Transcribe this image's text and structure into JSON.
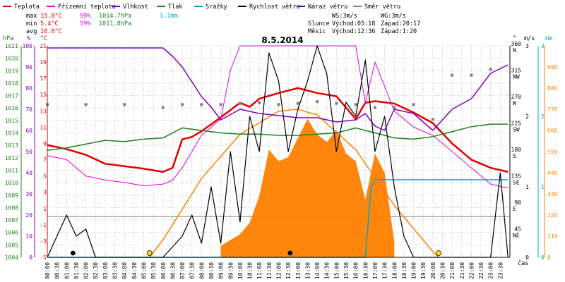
{
  "legend": [
    {
      "label": "Teplota",
      "color": "#e00000"
    },
    {
      "label": "Přízemní teplota",
      "color": "#e000e0"
    },
    {
      "label": "Vlhkost",
      "color": "#8000c0"
    },
    {
      "label": "Tlak",
      "color": "#208020"
    },
    {
      "label": "Srážky",
      "color": "#00a8d0"
    },
    {
      "label": "Rychlost větru",
      "color": "#000000"
    },
    {
      "label": "Náraz větru",
      "color": "#2020a0"
    },
    {
      "label": "Směr větru",
      "color": "#808080"
    }
  ],
  "stats": {
    "max": {
      "label": "max",
      "temp": "15.8°C",
      "hum": "99%",
      "press": "1014.7hPa",
      "rain": "1.1mm"
    },
    "min": {
      "label": "min",
      "temp": "5.4°C",
      "hum": "59%",
      "press": "1011.8hPa"
    },
    "avg": {
      "label": "avg",
      "temp": "10.8°C"
    }
  },
  "ws": {
    "l1": "WS:3m/s",
    "l2": "WG:3m/s"
  },
  "sun": {
    "label": "Slunce",
    "rise": "Východ:05:18",
    "set": "Západ:20:17"
  },
  "moon": {
    "label": "Měsíc",
    "rise": "Východ:12:36",
    "set": "Západ:1:20"
  },
  "axis_units": {
    "hpa": "hPa",
    "pct": "%",
    "temp": "°C",
    "deg": "°",
    "ms": "m/s",
    "mm": "mm",
    "time": "čas"
  },
  "colors": {
    "grid": "#c8c8c8",
    "temp": "#e00000",
    "ground": "#e000e0",
    "hum": "#8000c0",
    "press": "#208020",
    "rain": "#00a8d0",
    "wind": "#000000",
    "dir": "#808080",
    "solar_fill": "#ff8000",
    "solar_curve": "#ff8000",
    "sun_marker": "#ffe000"
  },
  "chart_data": {
    "type": "line",
    "title": "8.5.2014",
    "x_ticks": [
      "00:00",
      "00:30",
      "01:00",
      "01:30",
      "02:00",
      "02:30",
      "03:00",
      "03:30",
      "04:00",
      "04:30",
      "05:00",
      "05:30",
      "06:00",
      "06:30",
      "07:00",
      "07:30",
      "08:00",
      "08:30",
      "09:00",
      "09:30",
      "10:00",
      "10:30",
      "11:00",
      "11:30",
      "12:00",
      "12:30",
      "13:00",
      "13:30",
      "14:00",
      "14:30",
      "15:00",
      "15:30",
      "16:00",
      "16:30",
      "17:00",
      "17:30",
      "18:00",
      "18:30",
      "19:00",
      "19:30",
      "20:00",
      "20:30",
      "21:00",
      "21:30",
      "22:00",
      "22:30",
      "23:00",
      "23:30"
    ],
    "y_axes": {
      "pressure_hpa": {
        "ticks": [
          "1021",
          "1020",
          "1019",
          "1018",
          "1017",
          "1016",
          "1015",
          "1014",
          "1013",
          "1012",
          "1011",
          "1010",
          "1009",
          "1008",
          "1007",
          "1006",
          "1005",
          "1004"
        ],
        "range": [
          1004,
          1021
        ]
      },
      "humidity_pct": {
        "ticks": [
          "100",
          "90",
          "80",
          "70",
          "60",
          "50",
          "40",
          "30",
          "20",
          "10",
          "0"
        ],
        "range": [
          0,
          100
        ]
      },
      "temperature_c": {
        "ticks": [
          "21",
          "19",
          "17",
          "15",
          "13",
          "11",
          "9",
          "7",
          "5",
          "3",
          "1",
          "-1",
          "-3",
          "-5"
        ],
        "range": [
          -5,
          21
        ]
      },
      "wind_dir_deg": {
        "ticks": [
          {
            "deg": "360",
            "dir": "N"
          },
          {
            "deg": "315",
            "dir": "NW"
          },
          {
            "deg": "270",
            "dir": "W"
          },
          {
            "deg": "225",
            "dir": "SW"
          },
          {
            "deg": "180",
            "dir": "S"
          },
          {
            "deg": "135",
            "dir": "SE"
          },
          {
            "deg": "90",
            "dir": "E"
          },
          {
            "deg": "45",
            "dir": "NE"
          }
        ],
        "range": [
          0,
          360
        ]
      },
      "wind_ms": {
        "ticks": [
          "3",
          "2",
          "1",
          "0"
        ],
        "range": [
          0,
          3
        ]
      },
      "rain_mm": {
        "ticks": [
          "3",
          "2",
          "1",
          "0"
        ],
        "range": [
          0,
          3
        ]
      },
      "solar": {
        "ticks": [
          "990",
          "880",
          "770",
          "660",
          "550",
          "440",
          "330",
          "220",
          "110",
          "0"
        ],
        "range": [
          0,
          1100
        ]
      }
    },
    "series": [
      {
        "name": "Teplota",
        "unit": "°C",
        "x": [
          0,
          1,
          2,
          3,
          4,
          5,
          6,
          6.5,
          7,
          7.5,
          8,
          9,
          10,
          10.5,
          11,
          12,
          13,
          14,
          15,
          16,
          16.5,
          17,
          18,
          19,
          20,
          21,
          22,
          23,
          23.9
        ],
        "y": [
          8.8,
          8.3,
          7.6,
          6.5,
          6.2,
          5.9,
          5.5,
          6,
          9.5,
          9.8,
          10.5,
          12.2,
          14,
          13.5,
          14.5,
          15.2,
          15.8,
          15.2,
          14.8,
          12,
          14,
          14.2,
          13.9,
          12.8,
          11.5,
          9,
          7,
          6,
          5.5
        ]
      },
      {
        "name": "Přízemní teplota",
        "unit": "°C",
        "x": [
          0,
          1,
          2,
          3,
          4,
          5,
          6,
          6.5,
          7,
          7.5,
          8,
          9,
          9.5,
          10,
          11,
          12,
          13,
          14,
          15,
          16,
          16.5,
          17,
          18,
          19,
          20,
          21,
          22,
          23,
          23.9
        ],
        "y": [
          7.5,
          7,
          5,
          4.5,
          4.2,
          3.8,
          4,
          4.5,
          6,
          8,
          10,
          12,
          18,
          21,
          21,
          21,
          21,
          21,
          21,
          21,
          14,
          19,
          13,
          11,
          10,
          8,
          6,
          4,
          3.5
        ]
      },
      {
        "name": "Vlhkost",
        "unit": "%",
        "x": [
          0,
          1,
          2,
          3,
          4,
          5,
          6,
          6.5,
          7,
          8,
          8.5,
          9,
          10,
          11,
          12,
          13,
          14,
          15,
          16,
          16.5,
          17,
          17.5,
          18,
          19,
          20,
          21,
          22,
          23,
          23.9
        ],
        "y": [
          99,
          99,
          99,
          99,
          99,
          99,
          99,
          95,
          90,
          76,
          71,
          65,
          70,
          68,
          67,
          66,
          66,
          64,
          65,
          68,
          62,
          60,
          70,
          68,
          60,
          70,
          75,
          87,
          91
        ]
      },
      {
        "name": "Tlak",
        "unit": "hPa",
        "x": [
          0,
          1,
          2,
          3,
          4,
          5,
          6,
          6.5,
          7,
          8,
          9,
          10,
          11,
          12,
          13,
          14,
          15,
          16,
          17,
          18,
          19,
          20,
          21,
          22,
          23,
          23.9
        ],
        "y": [
          1012.6,
          1012.8,
          1013.1,
          1013.4,
          1013.3,
          1013.5,
          1013.6,
          1014.0,
          1014.4,
          1014.2,
          1014.0,
          1013.9,
          1013.9,
          1013.8,
          1013.8,
          1013.9,
          1014.0,
          1014.4,
          1014.0,
          1013.6,
          1013.5,
          1013.7,
          1014.1,
          1014.5,
          1014.7,
          1014.7
        ]
      },
      {
        "name": "Srážky",
        "unit": "mm",
        "x": [
          0,
          16.5,
          16.8,
          17.0,
          23.9
        ],
        "y": [
          0,
          0,
          1.0,
          1.1,
          1.1
        ]
      },
      {
        "name": "Rychlost větru",
        "unit": "m/s",
        "x": [
          0,
          1,
          1.5,
          2,
          2.5,
          3,
          5,
          6,
          7,
          7.5,
          8,
          8.5,
          9,
          9.5,
          10,
          10.5,
          11,
          11.5,
          12,
          12.5,
          13,
          13.5,
          14,
          14.5,
          15,
          15.5,
          16,
          16.5,
          17,
          17.5,
          18,
          18.5,
          19,
          23,
          23.5,
          23.9
        ],
        "y": [
          0,
          0.6,
          0.3,
          0.4,
          0,
          0,
          0,
          0,
          0.3,
          0.6,
          0.2,
          1,
          0.2,
          1.5,
          0.5,
          2,
          1.5,
          2.9,
          2.5,
          1.5,
          2.1,
          2.5,
          3,
          2.6,
          1.5,
          2.2,
          2,
          2.8,
          1.5,
          2,
          1,
          0.3,
          0,
          0,
          1.2,
          0
        ]
      },
      {
        "name": "Směr větru",
        "unit": "°",
        "x": [
          0,
          2,
          4,
          6,
          7,
          8,
          9,
          10,
          11,
          12,
          13,
          14,
          15,
          16,
          17,
          18,
          19,
          20,
          21,
          22,
          23
        ],
        "y": [
          260,
          260,
          260,
          255,
          260,
          260,
          260,
          262,
          263,
          260,
          262,
          265,
          262,
          260,
          255,
          255,
          260,
          235,
          310,
          310,
          320
        ]
      }
    ],
    "solar_radiation": {
      "unit": "W/m²",
      "x": [
        9,
        10,
        10.5,
        11,
        11.5,
        12,
        12.5,
        13,
        13.5,
        14,
        14.5,
        15,
        15.5,
        16,
        16.5,
        17,
        17.5,
        18
      ],
      "y": [
        60,
        120,
        180,
        320,
        560,
        500,
        520,
        620,
        720,
        640,
        600,
        660,
        540,
        500,
        300,
        540,
        440,
        80
      ]
    },
    "solar_theoretical": {
      "x": [
        5.3,
        6,
        8,
        10,
        12,
        13,
        14,
        16,
        18,
        20,
        20.3
      ],
      "y": [
        0,
        90,
        410,
        640,
        760,
        770,
        740,
        560,
        270,
        30,
        0
      ]
    },
    "markers": [
      {
        "label": "sunrise",
        "x": 5.3
      },
      {
        "label": "sunset",
        "x": 20.3
      },
      {
        "label": "moonset",
        "x": 1.33
      },
      {
        "label": "moonrise",
        "x": 12.6
      }
    ]
  }
}
